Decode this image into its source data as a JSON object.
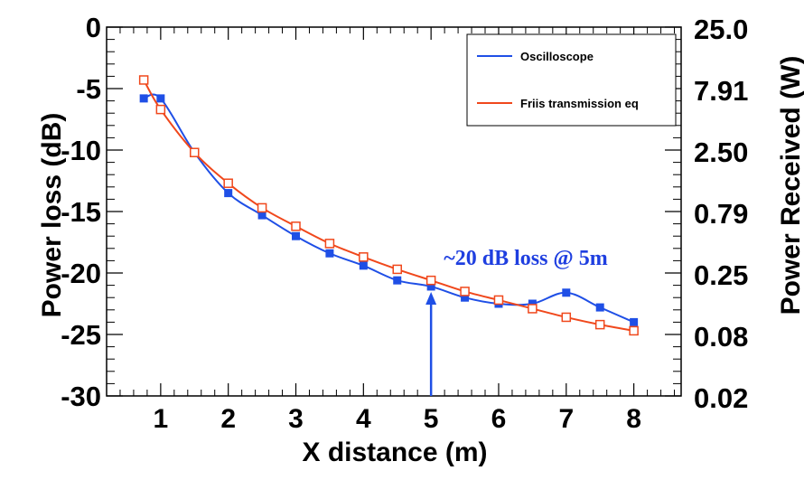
{
  "chart_data": {
    "type": "line",
    "xlabel": "X distance (m)",
    "ylabel": "Power loss (dB)",
    "y2label": "Power Received (W)",
    "xlim": [
      0.2,
      8.7
    ],
    "ylim": [
      -30,
      0
    ],
    "xticks": [
      1,
      2,
      3,
      4,
      5,
      6,
      7,
      8
    ],
    "yticks": [
      0,
      -5,
      -10,
      -15,
      -20,
      -25,
      -30
    ],
    "y2ticks": [
      "25.0",
      "7.91",
      "2.50",
      "0.79",
      "0.25",
      "0.08",
      "0.02"
    ],
    "grid": false,
    "legend_position": "top-right",
    "series": [
      {
        "name": "Oscilloscope",
        "color": "#1f4fe6",
        "marker": "filled-square",
        "x": [
          0.75,
          1.0,
          1.5,
          2.0,
          2.5,
          3.0,
          3.5,
          4.0,
          4.5,
          5.0,
          5.5,
          6.0,
          6.5,
          7.0,
          7.5,
          8.0
        ],
        "y": [
          -5.8,
          -5.8,
          -10.2,
          -13.5,
          -15.3,
          -17.0,
          -18.4,
          -19.4,
          -20.6,
          -21.1,
          -22.0,
          -22.5,
          -22.5,
          -21.6,
          -22.8,
          -24.0
        ]
      },
      {
        "name": "Friis transmission eq",
        "color": "#f0481c",
        "marker": "open-square",
        "x": [
          0.75,
          1.0,
          1.5,
          2.0,
          2.5,
          3.0,
          3.5,
          4.0,
          4.5,
          5.0,
          5.5,
          6.0,
          6.5,
          7.0,
          7.5,
          8.0
        ],
        "y": [
          -4.3,
          -6.7,
          -10.2,
          -12.7,
          -14.7,
          -16.2,
          -17.6,
          -18.7,
          -19.7,
          -20.6,
          -21.5,
          -22.2,
          -22.9,
          -23.6,
          -24.2,
          -24.7
        ]
      }
    ],
    "annotation": {
      "text": "~20 dB loss @ 5m",
      "arrow_x": 5.0,
      "arrow_from_y": -30,
      "arrow_to_y": -21.1
    }
  }
}
